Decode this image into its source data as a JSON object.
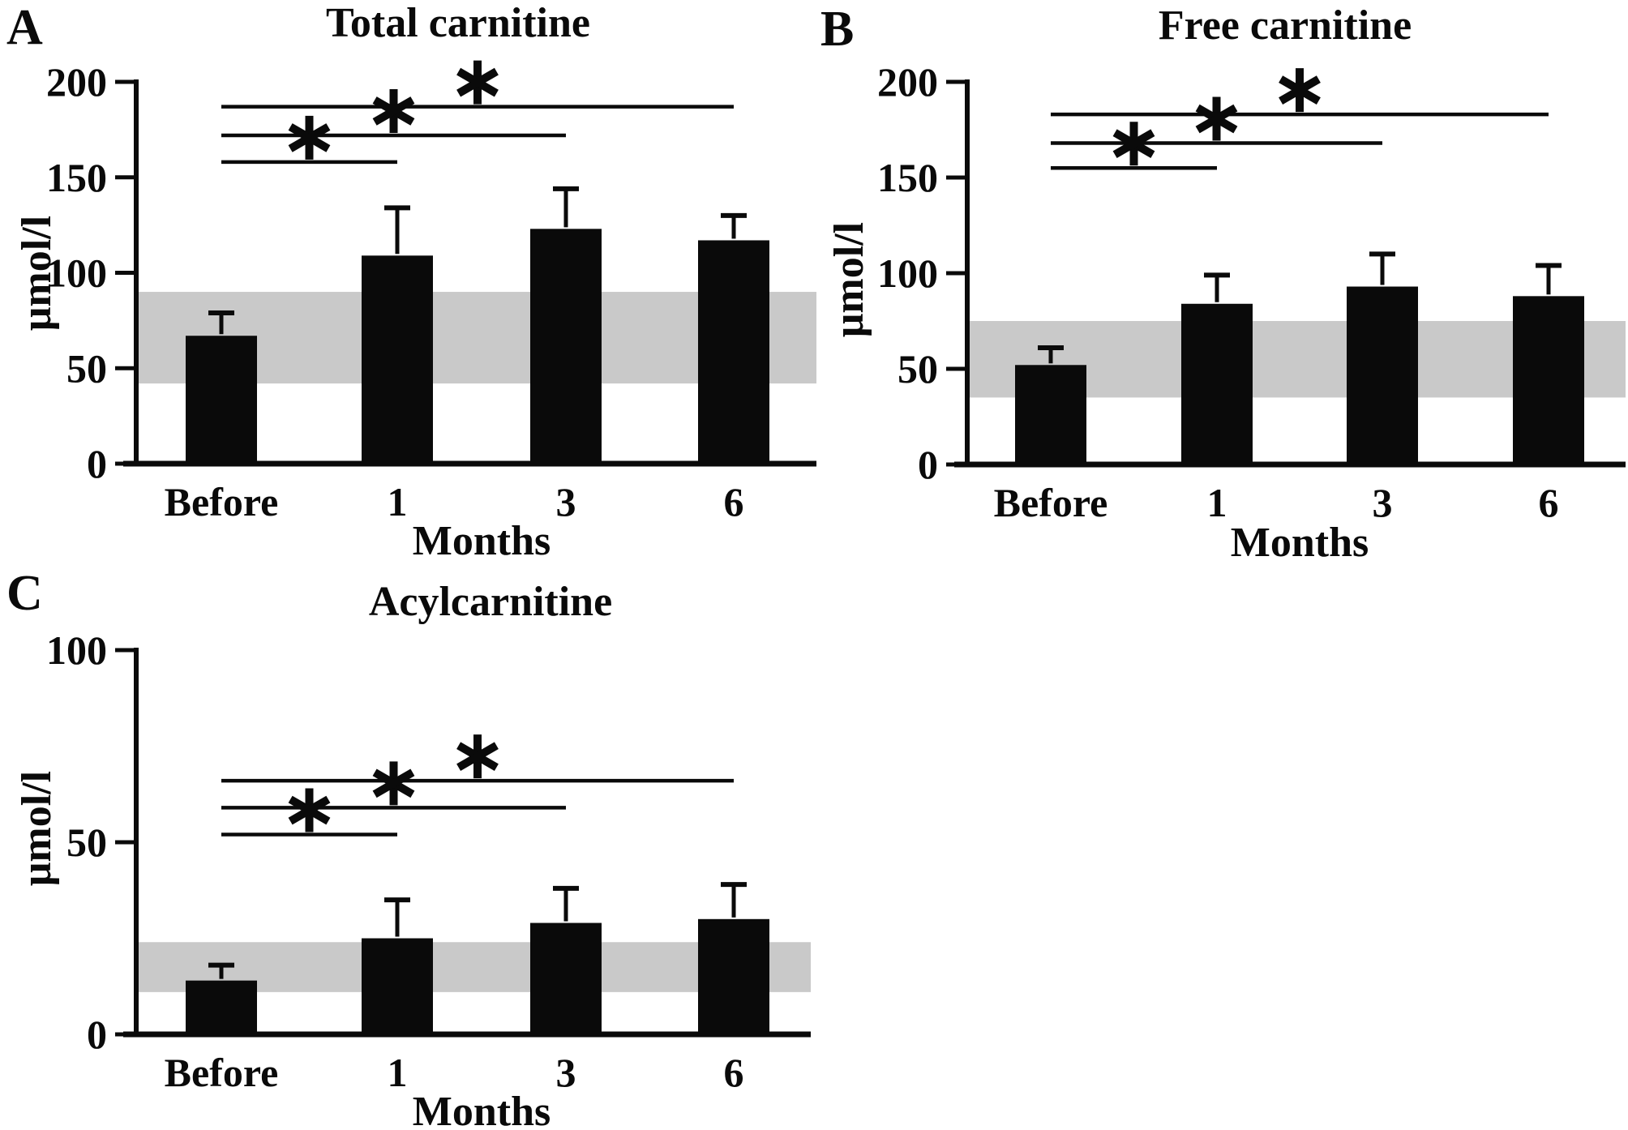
{
  "figure": {
    "background_color": "#ffffff",
    "ink_color": "#0a0a0a",
    "reference_band_color": "#c9c9c9",
    "significance_symbol": "*",
    "unit_label": "μmol/l",
    "x_axis_label": "Months"
  },
  "chart_data": [
    {
      "type": "bar",
      "panel_letter": "A",
      "title": "Total carnitine",
      "ylabel": "μmol/l",
      "xlabel": "Months",
      "categories": [
        "Before",
        "1",
        "3",
        "6"
      ],
      "values": [
        67,
        109,
        123,
        117
      ],
      "error_upper": [
        79,
        134,
        144,
        130
      ],
      "ylim": [
        0,
        200
      ],
      "yticks": [
        0,
        50,
        100,
        150,
        200
      ],
      "reference_band": [
        42,
        90
      ],
      "bar_color": "#0a0a0a",
      "grid": false,
      "legend": false,
      "significance": [
        {
          "from": "Before",
          "to": "1",
          "line_y": 158,
          "label": "*"
        },
        {
          "from": "Before",
          "to": "3",
          "line_y": 172,
          "label": "*"
        },
        {
          "from": "Before",
          "to": "6",
          "line_y": 187,
          "label": "*"
        }
      ]
    },
    {
      "type": "bar",
      "panel_letter": "B",
      "title": "Free carnitine",
      "ylabel": "μmol/l",
      "xlabel": "Months",
      "categories": [
        "Before",
        "1",
        "3",
        "6"
      ],
      "values": [
        52,
        84,
        93,
        88
      ],
      "error_upper": [
        61,
        99,
        110,
        104
      ],
      "ylim": [
        0,
        200
      ],
      "yticks": [
        0,
        50,
        100,
        150,
        200
      ],
      "reference_band": [
        35,
        75
      ],
      "bar_color": "#0a0a0a",
      "grid": false,
      "legend": false,
      "significance": [
        {
          "from": "Before",
          "to": "1",
          "line_y": 155,
          "label": "*"
        },
        {
          "from": "Before",
          "to": "3",
          "line_y": 168,
          "label": "*"
        },
        {
          "from": "Before",
          "to": "6",
          "line_y": 183,
          "label": "*"
        }
      ]
    },
    {
      "type": "bar",
      "panel_letter": "C",
      "title": "Acylcarnitine",
      "ylabel": "μmol/l",
      "xlabel": "Months",
      "categories": [
        "Before",
        "1",
        "3",
        "6"
      ],
      "values": [
        14,
        25,
        29,
        30
      ],
      "error_upper": [
        18,
        35,
        38,
        39
      ],
      "ylim": [
        0,
        100
      ],
      "yticks": [
        0,
        50,
        100
      ],
      "reference_band": [
        11,
        24
      ],
      "bar_color": "#0a0a0a",
      "grid": false,
      "legend": false,
      "significance": [
        {
          "from": "Before",
          "to": "1",
          "line_y": 52,
          "label": "*"
        },
        {
          "from": "Before",
          "to": "3",
          "line_y": 59,
          "label": "*"
        },
        {
          "from": "Before",
          "to": "6",
          "line_y": 66,
          "label": "*"
        }
      ]
    }
  ]
}
